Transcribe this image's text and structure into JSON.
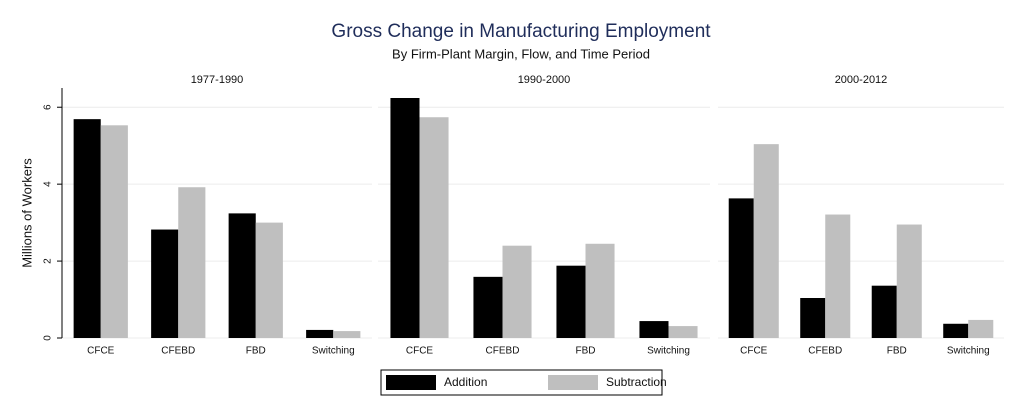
{
  "title": "Gross Change in Manufacturing Employment",
  "subtitle": "By Firm-Plant Margin, Flow, and Time Period",
  "chart_data": [
    {
      "type": "bar",
      "title": "1977-1990",
      "ylabel": "Millions of Workers",
      "categories": [
        "CFCE",
        "CFEBD",
        "FBD",
        "Switching"
      ],
      "series": [
        {
          "name": "Addition",
          "color": "#000000",
          "values": [
            5.69,
            2.82,
            3.24,
            0.21
          ]
        },
        {
          "name": "Subtraction",
          "color": "#bfbfbf",
          "values": [
            5.53,
            3.92,
            3.0,
            0.18
          ]
        }
      ],
      "ylim": [
        0,
        6.5
      ],
      "yticks": [
        0,
        2,
        4,
        6
      ],
      "grid": true,
      "show_ytick_labels": true
    },
    {
      "type": "bar",
      "title": "1990-2000",
      "categories": [
        "CFCE",
        "CFEBD",
        "FBD",
        "Switching"
      ],
      "series": [
        {
          "name": "Addition",
          "color": "#000000",
          "values": [
            6.24,
            1.59,
            1.88,
            0.44
          ]
        },
        {
          "name": "Subtraction",
          "color": "#bfbfbf",
          "values": [
            5.74,
            2.4,
            2.45,
            0.31
          ]
        }
      ],
      "ylim": [
        0,
        6.5
      ],
      "yticks": [
        0,
        2,
        4,
        6
      ],
      "grid": true,
      "show_ytick_labels": false
    },
    {
      "type": "bar",
      "title": "2000-2012",
      "categories": [
        "CFCE",
        "CFEBD",
        "FBD",
        "Switching"
      ],
      "series": [
        {
          "name": "Addition",
          "color": "#000000",
          "values": [
            3.63,
            1.04,
            1.36,
            0.37
          ]
        },
        {
          "name": "Subtraction",
          "color": "#bfbfbf",
          "values": [
            5.04,
            3.21,
            2.95,
            0.47
          ]
        }
      ],
      "ylim": [
        0,
        6.5
      ],
      "yticks": [
        0,
        2,
        4,
        6
      ],
      "grid": true,
      "show_ytick_labels": false
    }
  ]
}
